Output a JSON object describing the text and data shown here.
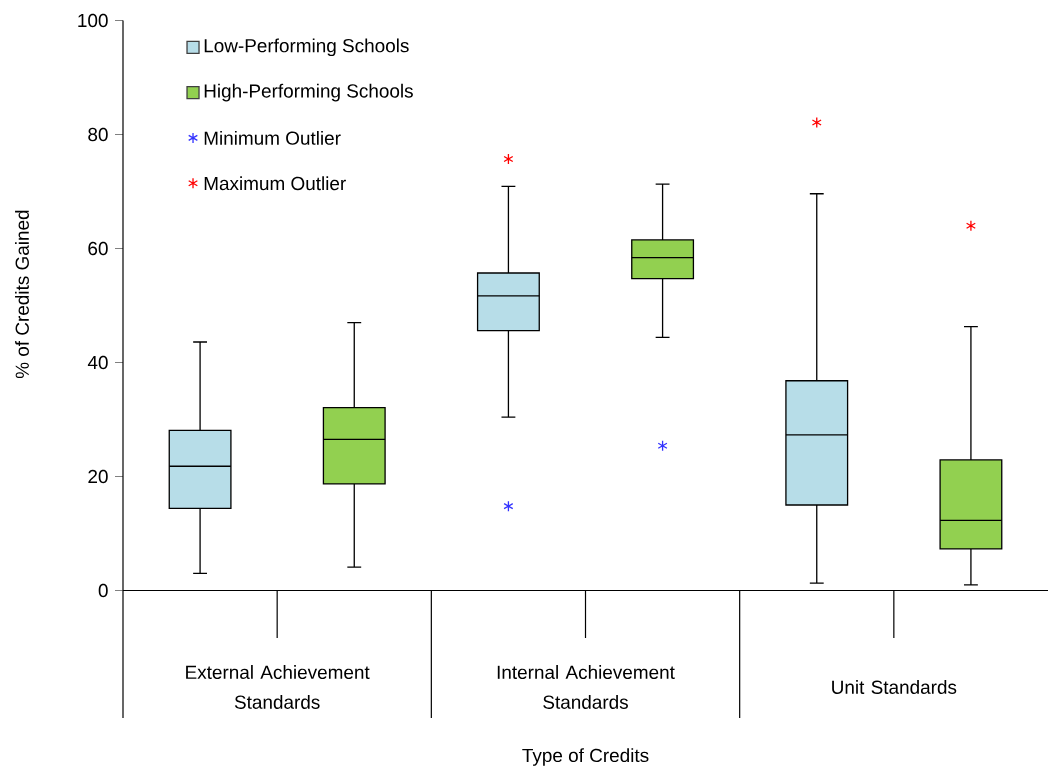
{
  "chart_data": {
    "type": "box",
    "xlabel": "Type of Credits",
    "ylabel": "% of Credits Gained",
    "categories": [
      "External Achievement Standards",
      "Internal Achievement Standards",
      "Unit Standards"
    ],
    "ylim": [
      0,
      100
    ],
    "yticks": [
      0,
      20,
      40,
      60,
      80,
      100
    ],
    "legend": "top left",
    "grid": false,
    "series": [
      {
        "name": "Low-Performing Schools",
        "color": "#b7dde8",
        "boxes": [
          {
            "low": 3.0,
            "q1": 14.4,
            "median": 21.8,
            "q3": 28.1,
            "high": 43.6
          },
          {
            "low": 30.4,
            "q1": 45.6,
            "median": 51.7,
            "q3": 55.7,
            "high": 70.9
          },
          {
            "low": 1.3,
            "q1": 15.0,
            "median": 27.3,
            "q3": 36.8,
            "high": 69.6
          }
        ]
      },
      {
        "name": "High-Performing Schools",
        "color": "#92d050",
        "boxes": [
          {
            "low": 4.1,
            "q1": 18.7,
            "median": 26.5,
            "q3": 32.1,
            "high": 47.0
          },
          {
            "low": 44.4,
            "q1": 54.7,
            "median": 58.4,
            "q3": 61.5,
            "high": 71.3
          },
          {
            "low": 1.0,
            "q1": 7.3,
            "median": 12.3,
            "q3": 22.9,
            "high": 46.3
          }
        ]
      },
      {
        "name": "Minimum Outlier",
        "type": "scatter",
        "marker": "cross",
        "color": "#3333ff",
        "x": [
          "Internal Achievement Standards"
        ],
        "values": [
          14.8
        ]
      },
      {
        "type": "scatter",
        "marker": "cross",
        "color": "#3333ff",
        "x": [
          "Internal Achievement Standards"
        ],
        "values": [
          25.4
        ]
      },
      {
        "name": "Maximum Outlier",
        "type": "scatter",
        "marker": "cross",
        "color": "#ff0000",
        "x": [
          "Internal Achievement Standards",
          "Unit Standards"
        ],
        "values": [
          75.7,
          82.1
        ]
      },
      {
        "type": "scatter",
        "marker": "cross",
        "color": "#ff0000",
        "x": [
          "Unit Standards"
        ],
        "values": [
          64.0
        ]
      }
    ]
  }
}
